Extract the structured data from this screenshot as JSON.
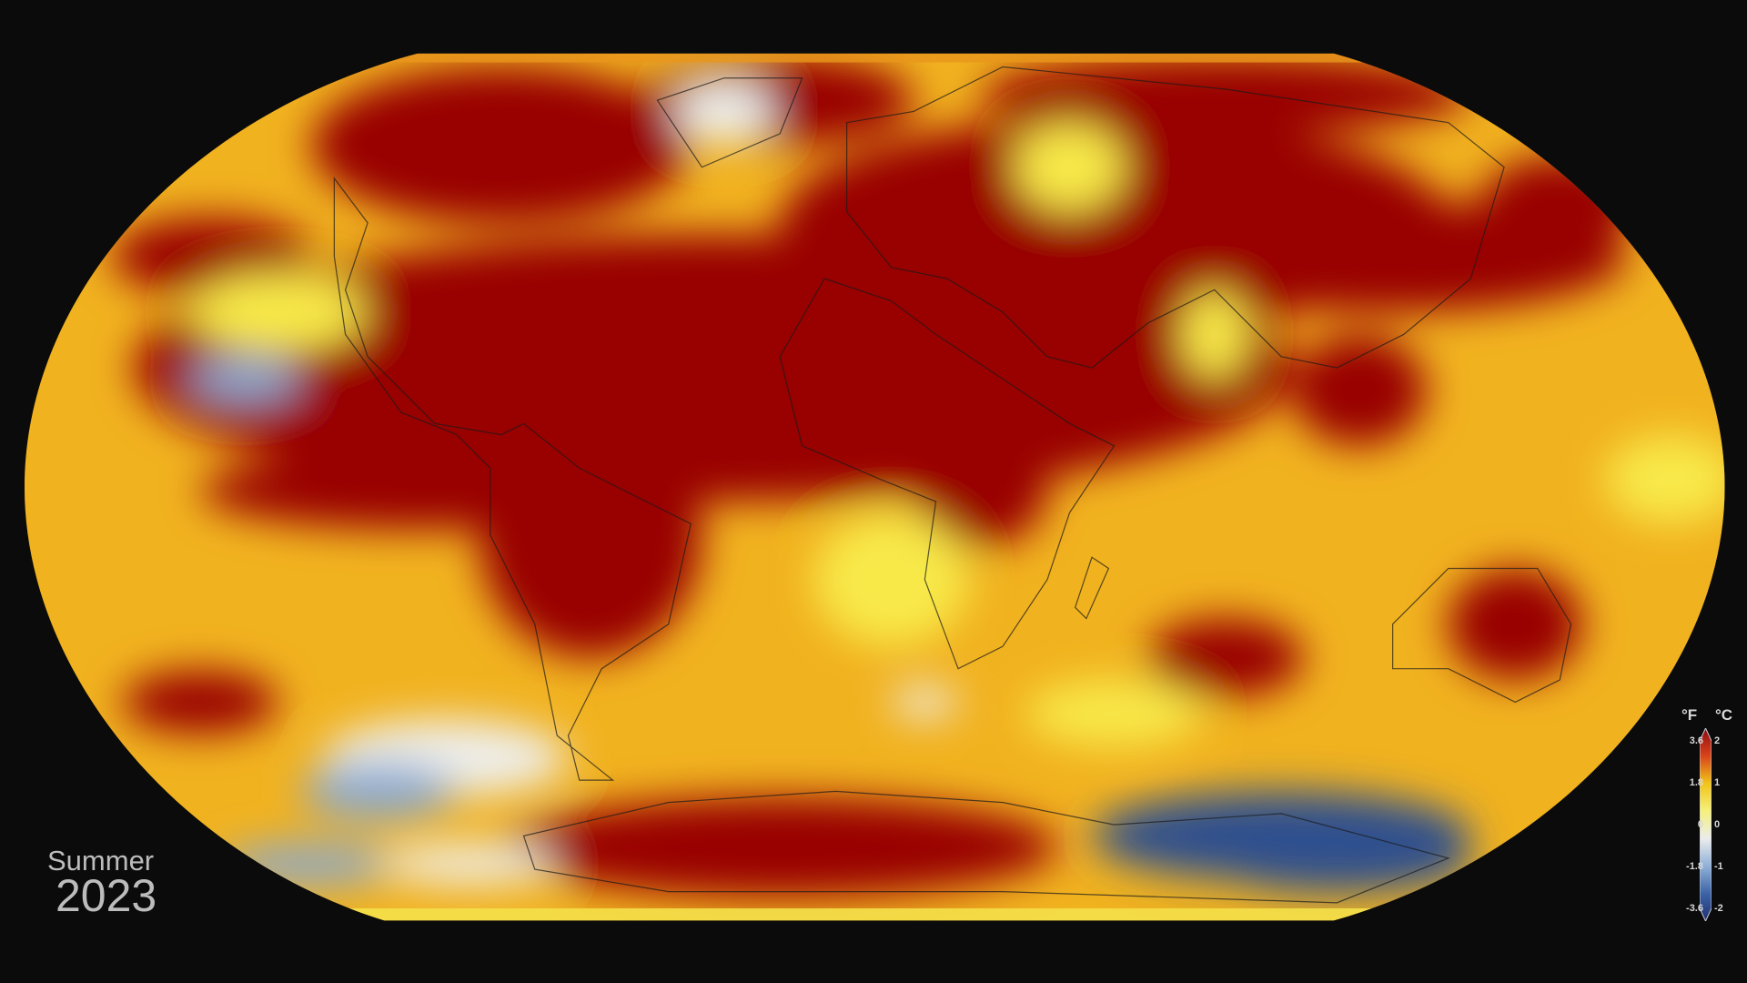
{
  "caption": {
    "season": "Summer",
    "year": "2023"
  },
  "legend": {
    "unit_f": "°F",
    "unit_c": "°C",
    "ticks": [
      {
        "f": "3.6",
        "c": "2",
        "frac": 0.0
      },
      {
        "f": "1.8",
        "c": "1",
        "frac": 0.25
      },
      {
        "f": "0",
        "c": "0",
        "frac": 0.5
      },
      {
        "f": "-1.8",
        "c": "-1",
        "frac": 0.75
      },
      {
        "f": "-3.6",
        "c": "-2",
        "frac": 1.0
      }
    ],
    "colors": [
      "#8e0a12",
      "#d8431a",
      "#f2c418",
      "#f5f07a",
      "#ececec",
      "#8fb1d8",
      "#3d64a6",
      "#1f2f6e"
    ]
  },
  "map": {
    "projection": "Robinson",
    "colors": {
      "hot": "#990000",
      "warm": "#f0a81e",
      "mild": "#f8e94a",
      "neutral": "#eeeeea",
      "cool": "#8aa9d0",
      "cold": "#2d4f8e",
      "background": "#0b0b0b"
    }
  }
}
